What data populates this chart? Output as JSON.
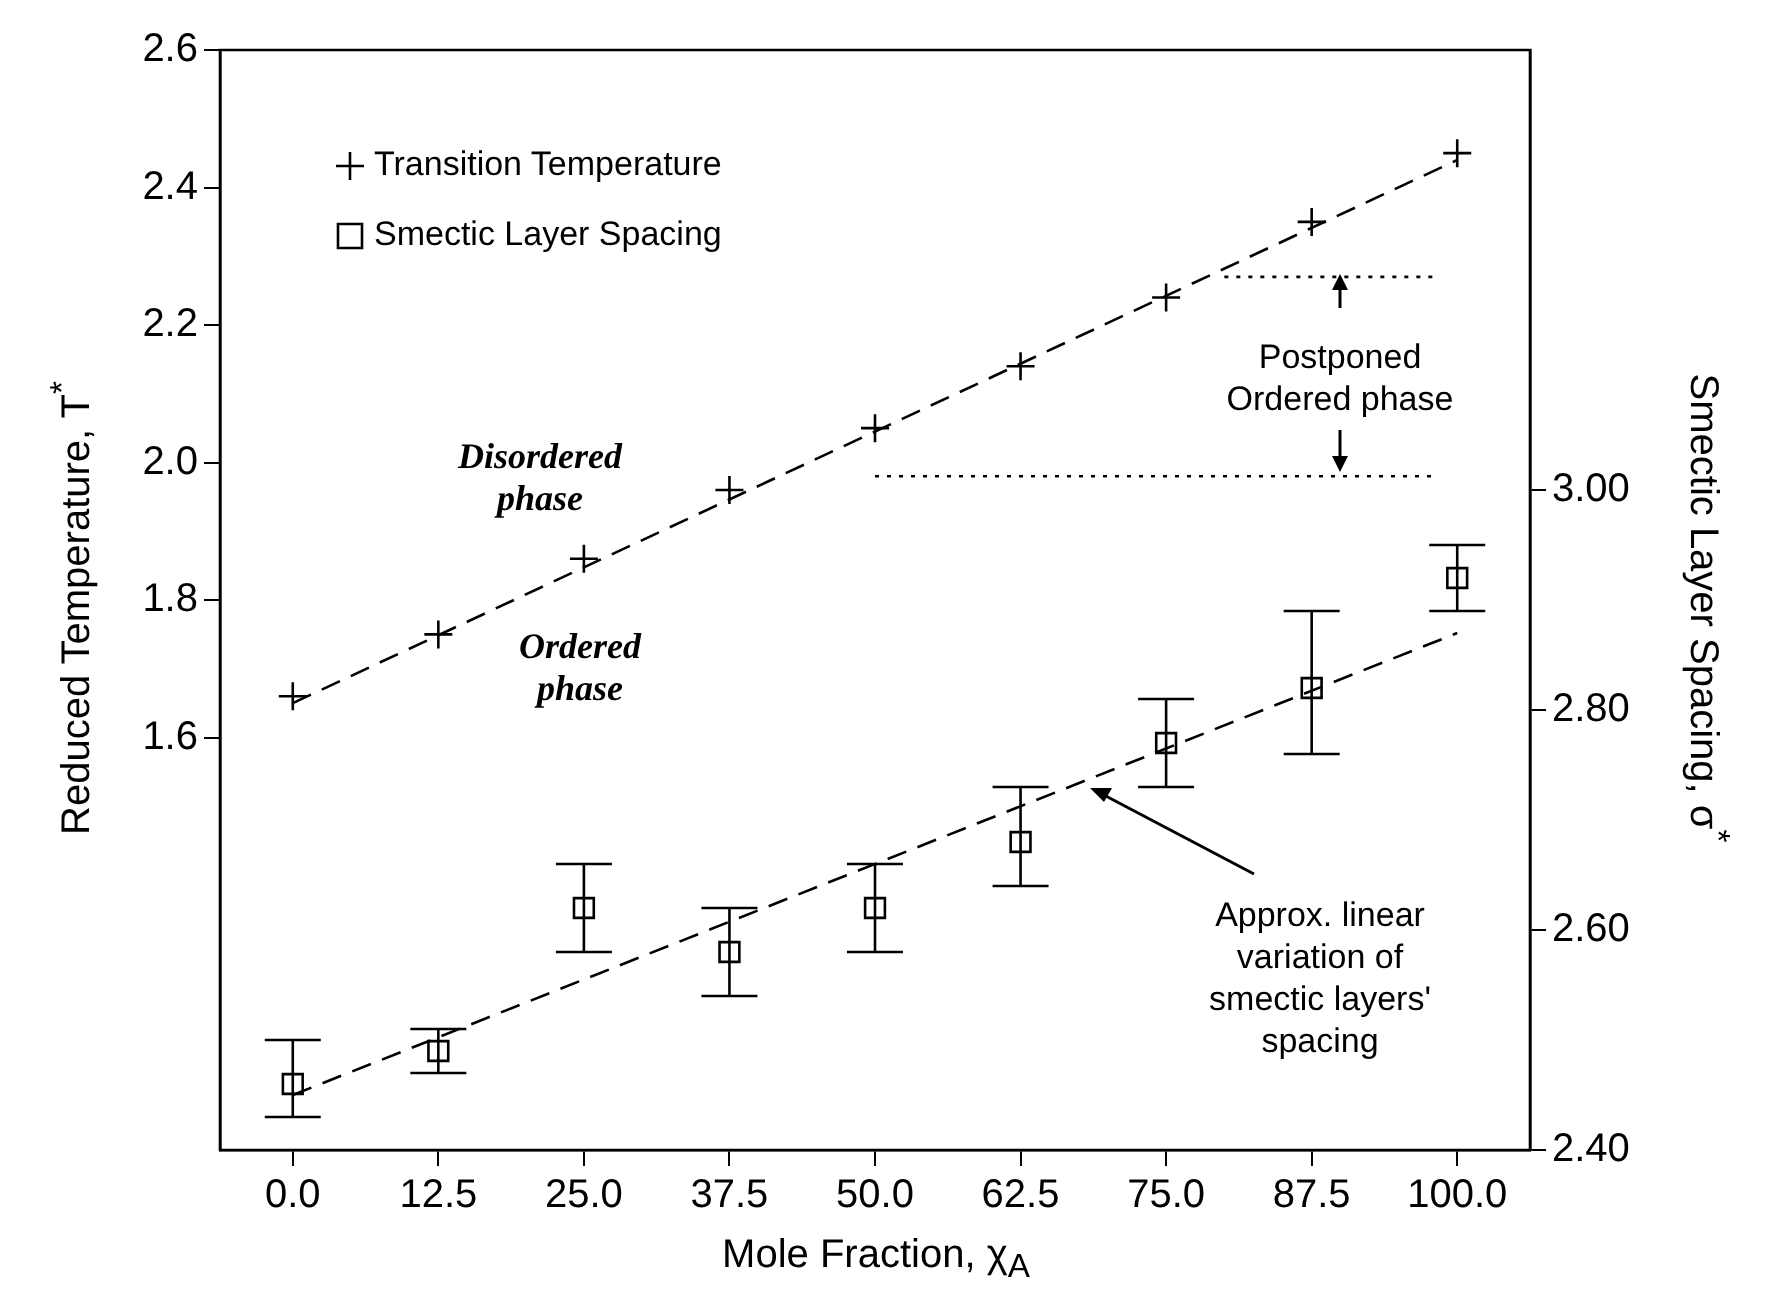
{
  "chart_data": {
    "type": "scatter",
    "xlabel": "Mole Fraction, χ$_{A}$",
    "ylabel": "Reduced Temperature, T$^{*}$",
    "y2label": "Smectic Layer Spacing, σ$^{*}$",
    "xlim": [
      -6.25,
      106.25
    ],
    "xticks": [
      {
        "value": 0,
        "label": "0.0"
      },
      {
        "value": 12.5,
        "label": "12.5"
      },
      {
        "value": 25,
        "label": "25.0"
      },
      {
        "value": 37.5,
        "label": "37.5"
      },
      {
        "value": 50,
        "label": "50.0"
      },
      {
        "value": 62.5,
        "label": "62.5"
      },
      {
        "value": 75,
        "label": "75.0"
      },
      {
        "value": 87.5,
        "label": "87.5"
      },
      {
        "value": 100,
        "label": "100.0"
      }
    ],
    "ylim": [
      1.0,
      2.6
    ],
    "yticks": [
      1.6,
      1.8,
      {
        "value": 2,
        "label": "2.0"
      },
      2.2,
      2.4,
      2.6
    ],
    "y2lim": [
      2.4,
      3.4
    ],
    "y2ticks": [
      {
        "value": 2.4,
        "label": "2.40"
      },
      {
        "value": 2.6,
        "label": "2.60"
      },
      {
        "value": 2.8,
        "label": "2.80"
      },
      {
        "value": 3.0,
        "label": "3.00"
      }
    ],
    "grid": false,
    "legend": "top left",
    "series": [
      {
        "name": "Transition Temperature",
        "type": "scatter",
        "marker": "cross",
        "color": "#000000",
        "x": [
          0,
          12.5,
          25,
          37.5,
          50,
          62.5,
          75,
          87.5,
          100
        ],
        "values": [
          1.66,
          1.75,
          1.86,
          1.96,
          2.05,
          2.14,
          2.24,
          2.35,
          2.45
        ]
      },
      {
        "type": "line",
        "line_style": "dashed",
        "marker": "none",
        "color": "#000000",
        "x": [
          0,
          100
        ],
        "values": [
          1.65,
          2.44
        ]
      },
      {
        "name": "Smectic Layer Spacing",
        "type": "scatter",
        "axis": "y2",
        "marker": "square",
        "color": "#000000",
        "x": [
          0,
          12.5,
          25,
          37.5,
          50,
          62.5,
          75,
          87.5,
          100
        ],
        "values": [
          2.46,
          2.49,
          2.62,
          2.58,
          2.62,
          2.68,
          2.77,
          2.82,
          2.92
        ],
        "errors": [
          [
            2.43,
            2.5
          ],
          [
            2.47,
            2.51
          ],
          [
            2.58,
            2.66
          ],
          [
            2.54,
            2.62
          ],
          [
            2.58,
            2.66
          ],
          [
            2.64,
            2.73
          ],
          [
            2.73,
            2.81
          ],
          [
            2.76,
            2.89
          ],
          [
            2.89,
            2.95
          ]
        ]
      },
      {
        "type": "line",
        "axis": "y2",
        "line_style": "dashed",
        "marker": "none",
        "color": "#000000",
        "x": [
          0,
          100
        ],
        "values": [
          2.45,
          2.87
        ]
      },
      {
        "type": "line",
        "line_style": "dotted",
        "marker": "none",
        "color": "#000000",
        "x": [
          80,
          98
        ],
        "values": [
          2.27,
          2.27
        ]
      },
      {
        "type": "line",
        "line_style": "dotted",
        "marker": "none",
        "color": "#000000",
        "x": [
          50,
          98
        ],
        "values": [
          1.98,
          1.98
        ]
      }
    ],
    "annotations": [
      "Disordered phase",
      "Ordered phase",
      "Postponed Ordered phase",
      "Approx. linear variation of smectic layers' spacing"
    ]
  }
}
